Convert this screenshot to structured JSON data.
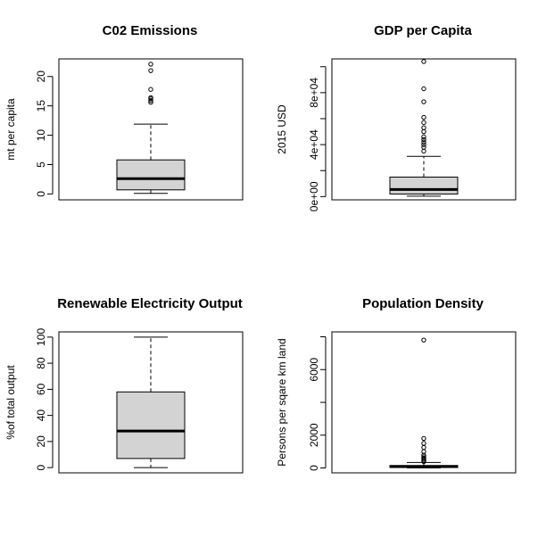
{
  "chart_data": [
    {
      "type": "boxplot",
      "title": "C02 Emissions",
      "ylabel": "mt per capita",
      "ylim": [
        -1,
        23
      ],
      "yticks": [
        0,
        5,
        10,
        15,
        20
      ],
      "ytick_labels": [
        "0",
        "5",
        "10",
        "15",
        "20"
      ],
      "whisker_low": 0.1,
      "q1": 0.7,
      "median": 2.6,
      "q3": 5.8,
      "whisker_high": 11.9,
      "outliers": [
        15.6,
        15.9,
        16.2,
        16.4,
        17.8,
        21.0,
        22.1
      ],
      "box_color": "#d3d3d3"
    },
    {
      "type": "boxplot",
      "title": "GDP per Capita",
      "ylabel": "2015 USD",
      "ylim": [
        -2500,
        106000
      ],
      "yticks": [
        0,
        20000,
        40000,
        60000,
        80000,
        100000
      ],
      "ytick_labels": [
        "0e+00",
        "",
        "4e+04",
        "",
        "8e+04",
        ""
      ],
      "whisker_low": 300,
      "q1": 2000,
      "median": 5500,
      "q3": 15000,
      "whisker_high": 31000,
      "outliers": [
        35000,
        38000,
        40000,
        42000,
        44000,
        46000,
        50000,
        53000,
        57000,
        61000,
        73000,
        83000,
        104000
      ],
      "box_color": "#d3d3d3"
    },
    {
      "type": "boxplot",
      "title": "Renewable Electricity Output",
      "ylabel": "%of total output",
      "ylim": [
        -4,
        104
      ],
      "yticks": [
        0,
        20,
        40,
        60,
        80,
        100
      ],
      "ytick_labels": [
        "0",
        "20",
        "40",
        "60",
        "80",
        "100"
      ],
      "whisker_low": 0,
      "q1": 7,
      "median": 28,
      "q3": 58,
      "whisker_high": 100,
      "outliers": [],
      "box_color": "#d3d3d3"
    },
    {
      "type": "boxplot",
      "title": "Population Density",
      "ylabel": "Persons per sqare km land",
      "ylim": [
        -300,
        8300
      ],
      "yticks": [
        0,
        2000,
        4000,
        6000,
        8000
      ],
      "ytick_labels": [
        "0",
        "2000",
        "",
        "6000",
        ""
      ],
      "whisker_low": 0,
      "q1": 25,
      "median": 80,
      "q3": 150,
      "whisker_high": 330,
      "outliers": [
        380,
        450,
        520,
        600,
        680,
        780,
        1000,
        1250,
        1500,
        1800,
        7800
      ],
      "box_color": "#d3d3d3"
    }
  ]
}
